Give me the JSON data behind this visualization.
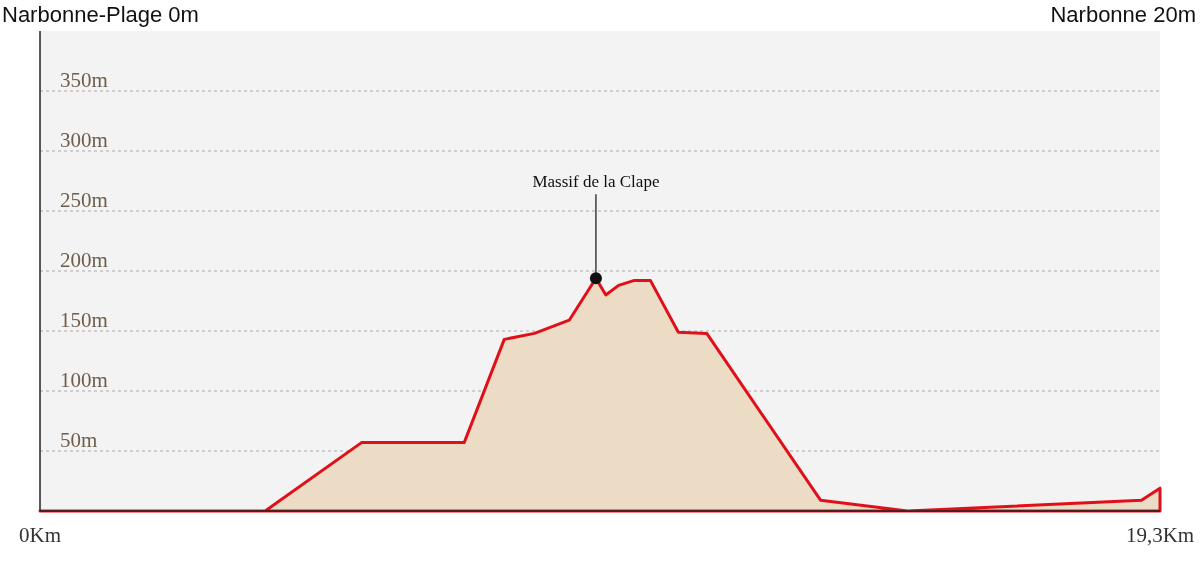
{
  "chart_data": {
    "type": "area",
    "annotations": [
      "Narbonne-Plage 0m",
      "Narbonne 20m",
      {
        "text": "Massif de la Clape",
        "x": 9.58,
        "y": 194
      }
    ],
    "x": [
      0,
      3.88,
      5.54,
      7.31,
      8.0,
      8.52,
      9.12,
      9.58,
      9.75,
      9.97,
      10.23,
      10.52,
      11.0,
      11.49,
      13.45,
      14.95,
      18.98,
      19.3
    ],
    "series": [
      {
        "color": "#e0101a",
        "values": [
          0,
          0,
          57,
          57,
          143,
          148,
          159,
          194,
          180,
          188,
          192,
          192,
          149,
          148,
          9,
          0,
          9,
          19
        ]
      }
    ],
    "xlim": [
      0,
      19.3
    ],
    "xticks": [
      {
        "value": 0,
        "label": "0Km"
      },
      {
        "value": 19.3,
        "label": "19,3Km"
      }
    ],
    "ylim": [
      0,
      400
    ],
    "yticks": [
      {
        "value": 50,
        "label": "50m"
      },
      {
        "value": 100,
        "label": "100m"
      },
      {
        "value": 150,
        "label": "150m"
      },
      {
        "value": 200,
        "label": "200m"
      },
      {
        "value": 250,
        "label": "250m"
      },
      {
        "value": 300,
        "label": "300m"
      },
      {
        "value": 350,
        "label": "350m"
      }
    ],
    "grid": "y",
    "line_style": "solid"
  }
}
